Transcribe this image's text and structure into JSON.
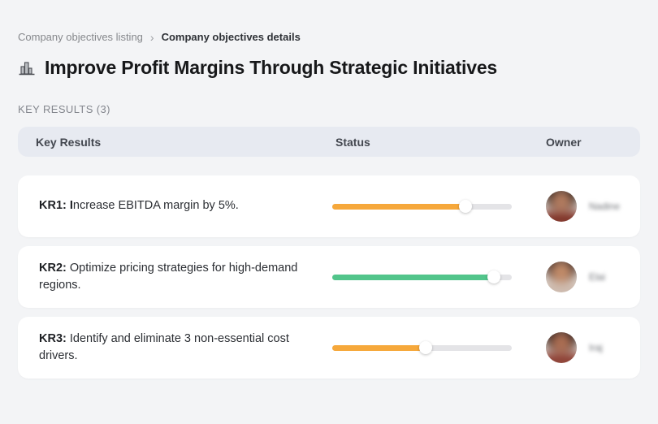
{
  "breadcrumb": {
    "items": [
      "Company objectives listing",
      "Company objectives details"
    ],
    "separator": "›"
  },
  "header": {
    "title": "Improve Profit Margins Through Strategic Initiatives",
    "icon": "buildings-bar-chart-icon"
  },
  "section_label": "KEY RESULTS (3)",
  "table": {
    "columns": [
      "Key Results",
      "Status",
      "Owner"
    ],
    "rows": [
      {
        "kr_bold": "KR1: I",
        "kr_text": "ncrease EBITDA margin by 5%.",
        "progress": {
          "percent": 74,
          "color": "#F6A83B",
          "track_color": "#E4E4E7"
        },
        "owner": {
          "name": "Nadine",
          "avatar_colors": {
            "hair": "#34241f",
            "skin": "#b07a5e",
            "clothes": "#7c2d21"
          }
        }
      },
      {
        "kr_bold": "KR2:",
        "kr_text": " Optimize pricing strategies for high-demand regions.",
        "progress": {
          "percent": 90,
          "color": "#52C58B",
          "track_color": "#E4E4E7"
        },
        "owner": {
          "name": "Elai",
          "avatar_colors": {
            "hair": "#44302a",
            "skin": "#c08a68",
            "clothes": "#cdb9ac"
          }
        }
      },
      {
        "kr_bold": "KR3:",
        "kr_text": " Identify and eliminate 3 non-essential cost drivers.",
        "progress": {
          "percent": 52,
          "color": "#F6A83B",
          "track_color": "#E4E4E7"
        },
        "owner": {
          "name": "Iraj",
          "avatar_colors": {
            "hair": "#2c1d1b",
            "skin": "#aa6d52",
            "clothes": "#8a3a2e"
          }
        }
      }
    ]
  },
  "colors": {
    "page_bg": "#f3f4f6",
    "card_bg": "#ffffff",
    "header_band_bg": "#e7eaf1",
    "accent_orange": "#F6A83B",
    "accent_green": "#52C58B"
  }
}
